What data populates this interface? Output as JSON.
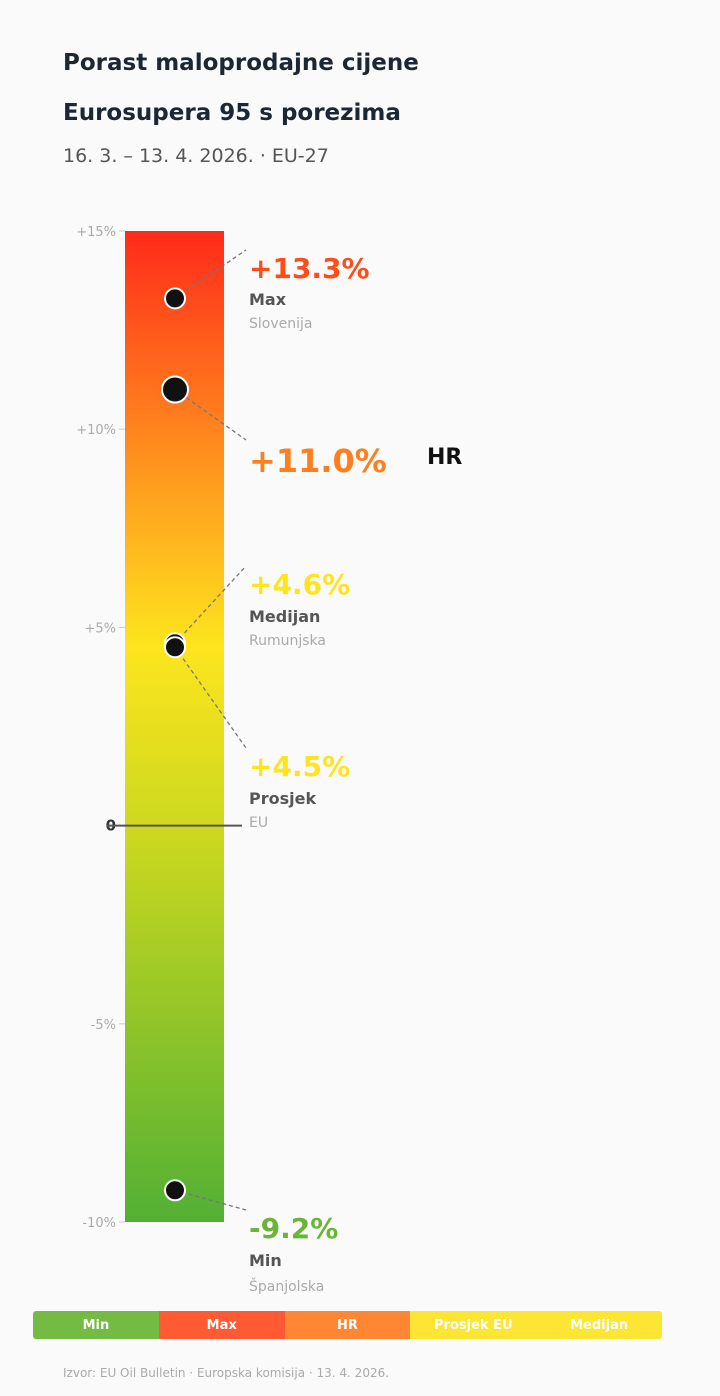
{
  "header": {
    "title_line1": "Porast maloprodajne cijene",
    "title_line2": "Eurosupera 95 s porezima",
    "subtitle": "16. 3. – 13. 4. 2026. · EU-27"
  },
  "chart_data": {
    "type": "scatter",
    "ylim": [
      -10,
      15
    ],
    "y_ticks": [
      {
        "value": 15,
        "label": "+15%"
      },
      {
        "value": 10,
        "label": "+10%"
      },
      {
        "value": 5,
        "label": "+5%"
      },
      {
        "value": 0,
        "label": "0"
      },
      {
        "value": -5,
        "label": "-5%"
      },
      {
        "value": -10,
        "label": "-10%"
      }
    ],
    "gradient": {
      "top": "#ff2a1a",
      "mid_orange": "#ff9a1f",
      "mid_yellow": "#fde51e",
      "mid_lime": "#c8d71f",
      "bottom": "#52b034"
    },
    "points": [
      {
        "key": "max",
        "value": 13.3,
        "value_label": "+13.3%",
        "label": "Max",
        "sub": "Slovenija",
        "color": "#ff4d1a",
        "highlight": false
      },
      {
        "key": "hr",
        "value": 11.0,
        "value_label": "+11.0%",
        "label": "",
        "sub": "",
        "tag": "HR",
        "color": "#ff7f1f",
        "highlight": true
      },
      {
        "key": "median",
        "value": 4.6,
        "value_label": "+4.6%",
        "label": "Medijan",
        "sub": "Rumunjska",
        "color": "#fde51e",
        "highlight": false
      },
      {
        "key": "avg",
        "value": 4.5,
        "value_label": "+4.5%",
        "label": "Prosjek",
        "sub": "EU",
        "color": "#fde51e",
        "highlight": false
      },
      {
        "key": "min",
        "value": -9.2,
        "value_label": "-9.2%",
        "label": "Min",
        "sub": "Španjolska",
        "color": "#6ab534",
        "highlight": false
      }
    ]
  },
  "legend": [
    {
      "label": "Min",
      "color": "#74bb44"
    },
    {
      "label": "Max",
      "color": "#ff5a33"
    },
    {
      "label": "HR",
      "color": "#ff8733"
    },
    {
      "label": "Prosjek EU",
      "color": "#fce533"
    },
    {
      "label": "Medijan",
      "color": "#fce533"
    }
  ],
  "footer": {
    "source": "Izvor: EU Oil Bulletin · Europska komisija · 13. 4. 2026."
  }
}
